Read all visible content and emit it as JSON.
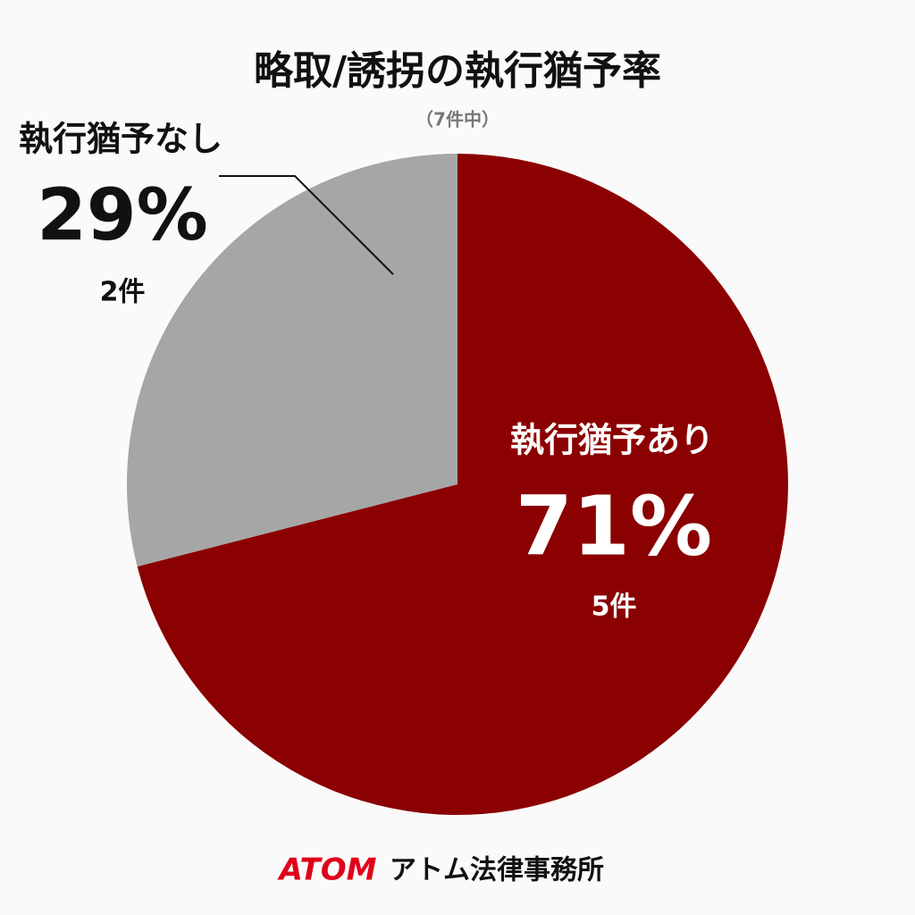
{
  "chart_data": {
    "type": "pie",
    "title": "略取/誘拐の執行猶予率",
    "subtitle": "（7件中）",
    "categories": [
      "執行猶予あり",
      "執行猶予なし"
    ],
    "values": [
      71,
      29
    ],
    "value_labels": [
      "71%",
      "29%"
    ],
    "count_labels": [
      "5件",
      "2件"
    ],
    "colors": [
      "#8b0000",
      "#a6a6a6"
    ],
    "footer": {
      "brand": "ATOM",
      "name": "アトム法律事務所"
    }
  }
}
